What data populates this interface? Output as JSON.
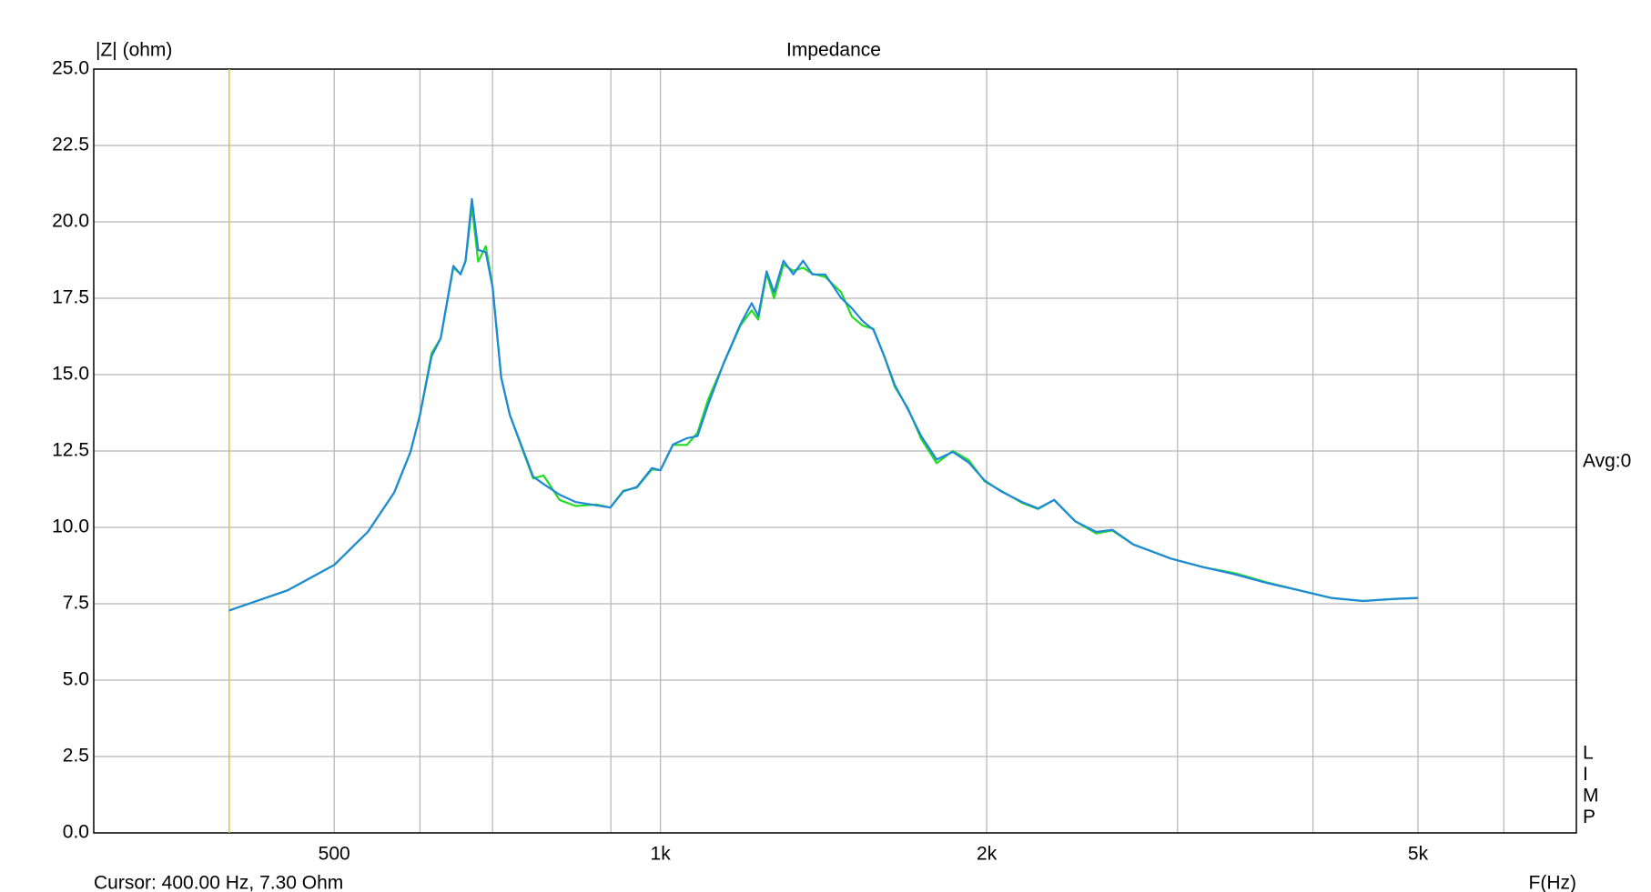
{
  "chart_data": {
    "type": "line",
    "title": "Impedance",
    "y_label": "|Z| (ohm)",
    "x_label": "F(Hz)",
    "cursor_text": "Cursor: 400.00 Hz, 7.30 Ohm",
    "cursor": 400,
    "cursor_color": "#e8c030",
    "side_label": "Avg:0",
    "side_letters": [
      "L",
      "I",
      "M",
      "P"
    ],
    "log_x": true,
    "grid": true,
    "xlim": [
      300,
      7000
    ],
    "xticks": [
      500,
      {
        "value": 1000,
        "label": "1k"
      },
      {
        "value": 2000,
        "label": "2k"
      },
      {
        "value": 5000,
        "label": "5k"
      }
    ],
    "xminor": [
      600,
      700,
      900,
      3000,
      4000,
      6000
    ],
    "ylim": [
      0,
      25
    ],
    "yticks": [
      {
        "value": 0,
        "label": "0.0"
      },
      2.5,
      {
        "value": 5,
        "label": "5.0"
      },
      7.5,
      {
        "value": 10,
        "label": "10.0"
      },
      12.5,
      {
        "value": 15,
        "label": "15.0"
      },
      17.5,
      {
        "value": 20,
        "label": "20.0"
      },
      22.5,
      {
        "value": 25,
        "label": "25.0"
      }
    ],
    "x": [
      400,
      453,
      500,
      537,
      568,
      588,
      600,
      615,
      627,
      644,
      654,
      661,
      670,
      679,
      690,
      700,
      713,
      726,
      745,
      763,
      780,
      807,
      835,
      873,
      899,
      924,
      951,
      982,
      1000,
      1027,
      1058,
      1082,
      1107,
      1145,
      1185,
      1214,
      1231,
      1253,
      1273,
      1299,
      1326,
      1354,
      1381,
      1419,
      1468,
      1502,
      1537,
      1572,
      1609,
      1645,
      1692,
      1740,
      1798,
      1861,
      1925,
      1992,
      2062,
      2156,
      2231,
      2308,
      2414,
      2524,
      2612,
      2731,
      2958,
      3166,
      3390,
      3628,
      3884,
      4157,
      4450,
      4763,
      5000
    ],
    "series": [
      {
        "color": "#22dd22",
        "values": [
          7.28,
          7.94,
          8.77,
          9.85,
          11.14,
          12.47,
          13.69,
          15.7,
          16.19,
          18.5,
          18.3,
          18.7,
          20.5,
          18.7,
          19.2,
          17.9,
          14.9,
          13.69,
          12.6,
          11.6,
          11.7,
          10.9,
          10.7,
          10.75,
          10.65,
          11.2,
          11.3,
          11.9,
          11.87,
          12.7,
          12.7,
          13.1,
          14.2,
          15.4,
          16.6,
          17.1,
          16.8,
          18.3,
          17.5,
          18.6,
          18.4,
          18.5,
          18.3,
          18.2,
          17.7,
          16.9,
          16.6,
          16.5,
          15.6,
          14.6,
          13.9,
          12.9,
          12.1,
          12.5,
          12.2,
          11.5,
          11.2,
          10.8,
          10.6,
          10.9,
          10.2,
          9.8,
          9.9,
          9.44,
          8.98,
          8.7,
          8.5,
          8.2,
          7.94,
          7.69,
          7.59,
          7.66,
          7.69
        ]
      },
      {
        "color": "#1f88d8",
        "values": [
          7.28,
          7.94,
          8.77,
          9.85,
          11.14,
          12.47,
          13.69,
          15.6,
          16.19,
          18.56,
          18.28,
          18.73,
          20.75,
          19.08,
          19.01,
          17.86,
          14.9,
          13.69,
          12.64,
          11.66,
          11.42,
          11.07,
          10.83,
          10.72,
          10.65,
          11.18,
          11.32,
          11.94,
          11.87,
          12.71,
          12.92,
          12.99,
          14.03,
          15.42,
          16.64,
          17.34,
          16.92,
          18.38,
          17.69,
          18.73,
          18.28,
          18.73,
          18.28,
          18.28,
          17.51,
          17.17,
          16.75,
          16.47,
          15.6,
          14.66,
          13.86,
          12.99,
          12.22,
          12.47,
          12.12,
          11.53,
          11.18,
          10.83,
          10.62,
          10.9,
          10.2,
          9.85,
          9.92,
          9.44,
          8.98,
          8.7,
          8.46,
          8.18,
          7.94,
          7.69,
          7.59,
          7.66,
          7.69
        ]
      }
    ]
  }
}
